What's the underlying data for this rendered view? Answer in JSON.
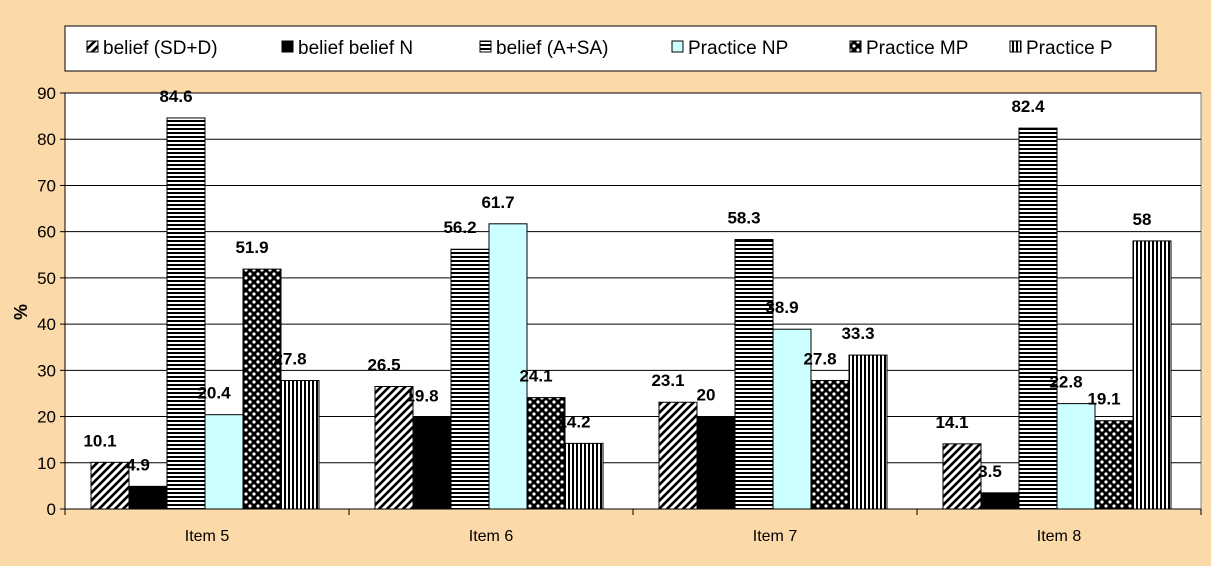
{
  "chart_data": {
    "type": "bar",
    "ylabel": "%",
    "xlabel": "",
    "ylim": [
      0,
      90
    ],
    "yticks": [
      "0",
      "10",
      "20",
      "30",
      "40",
      "50",
      "60",
      "70",
      "80",
      "90"
    ],
    "grid": true,
    "legend_position": "top",
    "categories": [
      "Item 5",
      "Item 6",
      "Item 7",
      "Item 8"
    ],
    "series": [
      {
        "name": "belief (SD+D)",
        "values": [
          10.1,
          26.5,
          23.1,
          14.1
        ],
        "labels": [
          "10.1",
          "26.5",
          "23.1",
          "14.1"
        ],
        "pattern": "diagonal",
        "color": "#000000"
      },
      {
        "name": "belief belief N",
        "values": [
          4.9,
          19.8,
          20,
          3.5
        ],
        "labels": [
          "4.9",
          "19.8",
          "20",
          "3.5"
        ],
        "pattern": "solid",
        "color": "#000000"
      },
      {
        "name": "belief (A+SA)",
        "values": [
          84.6,
          56.2,
          58.3,
          82.4
        ],
        "labels": [
          "84.6",
          "56.2",
          "58.3",
          "82.4"
        ],
        "pattern": "horizontal",
        "color": "#000000"
      },
      {
        "name": "Practice NP",
        "values": [
          20.4,
          61.7,
          38.9,
          22.8
        ],
        "labels": [
          "20.4",
          "61.7",
          "38.9",
          "22.8"
        ],
        "pattern": "light",
        "color": "#ccffff"
      },
      {
        "name": "Practice MP",
        "values": [
          51.9,
          24.1,
          27.8,
          19.1
        ],
        "labels": [
          "51.9",
          "24.1",
          "27.8",
          "19.1"
        ],
        "pattern": "checker",
        "color": "#000000"
      },
      {
        "name": "Practice P",
        "values": [
          27.8,
          14.2,
          33.3,
          58
        ],
        "labels": [
          "27.8",
          "14.2",
          "33.3",
          "58"
        ],
        "pattern": "vertical",
        "color": "#000000"
      }
    ]
  },
  "colors": {
    "background": "#fcd9a8",
    "plot": "#ffffff",
    "light_bar": "#ccffff"
  }
}
